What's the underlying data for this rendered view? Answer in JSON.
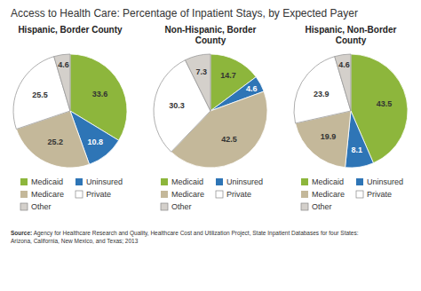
{
  "title": "Access to Health Care: Percentage of Inpatient Stays, by Expected Payer",
  "annotations": [
    "Source:",
    " Agency for Healthcare Research and Quality, Healthcare Cost and Utilization Project, State Inpatient Databases for four States:\nArizona, California, New Mexico, and Texas; 2013"
  ],
  "chart_data": [
    {
      "type": "pie",
      "subtitle": "Hispanic, Border County",
      "categories": [
        "Medicaid",
        "Uninsured",
        "Medicare",
        "Private",
        "Other"
      ],
      "values": [
        33.6,
        10.8,
        25.2,
        25.5,
        4.6
      ],
      "colors": [
        "#8db63c",
        "#2e75b6",
        "#c4b89a",
        "#ffffff",
        "#d4d0cb"
      ],
      "data_labels": true,
      "legend": "bottom"
    },
    {
      "type": "pie",
      "subtitle": "Non-Hispanic, Border\nCounty",
      "categories": [
        "Medicaid",
        "Uninsured",
        "Medicare",
        "Private",
        "Other"
      ],
      "values": [
        14.7,
        4.6,
        42.5,
        30.3,
        7.3
      ],
      "colors": [
        "#8db63c",
        "#2e75b6",
        "#c4b89a",
        "#ffffff",
        "#d4d0cb"
      ],
      "data_labels": true,
      "legend": "bottom"
    },
    {
      "type": "pie",
      "subtitle": "Hispanic, Non-Border\nCounty",
      "categories": [
        "Medicaid",
        "Uninsured",
        "Medicare",
        "Private",
        "Other"
      ],
      "values": [
        43.5,
        8.1,
        19.9,
        23.9,
        4.6
      ],
      "colors": [
        "#8db63c",
        "#2e75b6",
        "#c4b89a",
        "#ffffff",
        "#d4d0cb"
      ],
      "data_labels": true,
      "legend": "bottom"
    }
  ]
}
